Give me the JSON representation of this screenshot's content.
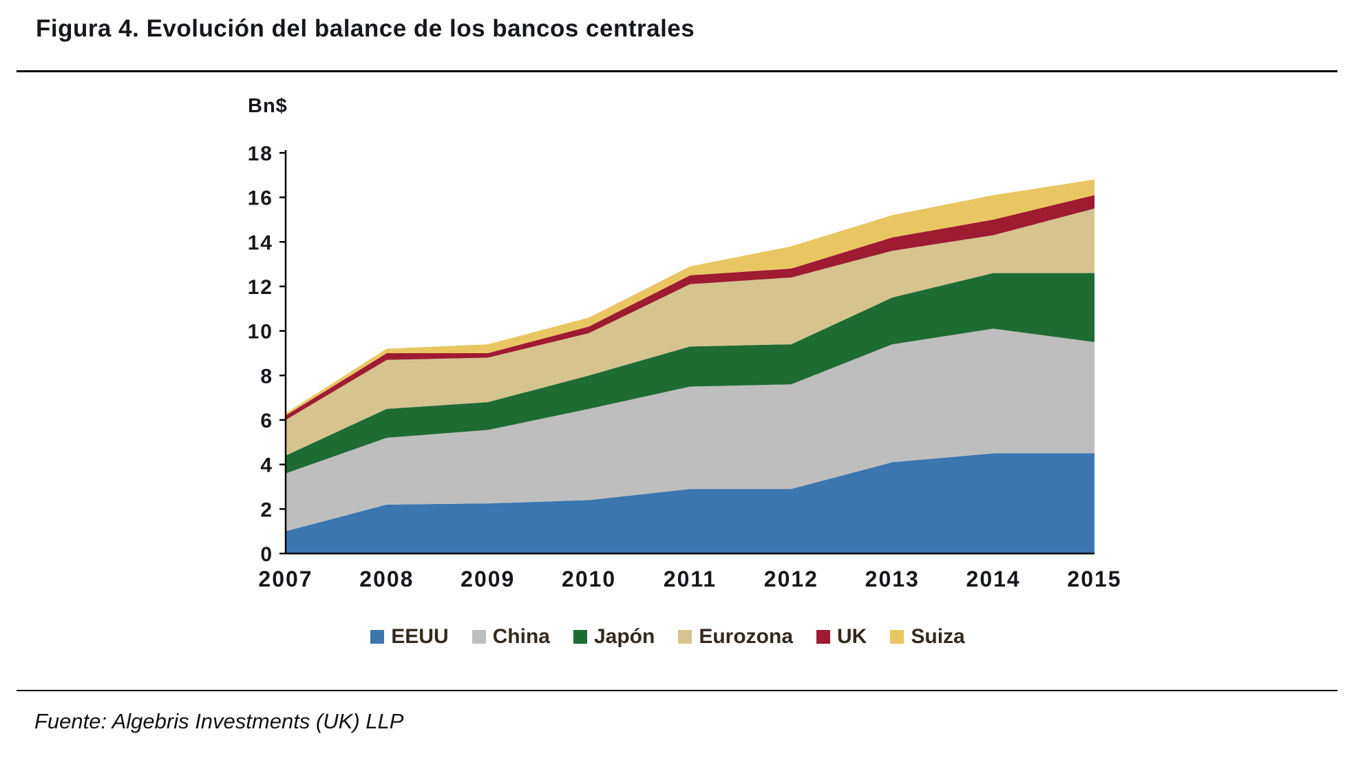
{
  "title": "Figura 4. Evolución del balance de los bancos  centrales",
  "source": "Fuente: Algebris Investments (UK) LLP",
  "chart_data": {
    "type": "area",
    "stacked": true,
    "title": "Figura 4. Evolución del balance de los bancos centrales",
    "ylabel": "Bn$",
    "xlabel": "",
    "ylim": [
      0,
      18
    ],
    "yticks": [
      0,
      2,
      4,
      6,
      8,
      10,
      12,
      14,
      16,
      18
    ],
    "grid": false,
    "legend_position": "bottom",
    "categories": [
      "2007",
      "2008",
      "2009",
      "2010",
      "2011",
      "2012",
      "2013",
      "2014",
      "2015"
    ],
    "series": [
      {
        "name": "EEUU",
        "color": "#3B76AF",
        "values": [
          1.0,
          2.2,
          2.25,
          2.4,
          2.9,
          2.9,
          4.1,
          4.5,
          4.5
        ]
      },
      {
        "name": "China",
        "color": "#BEBEBE",
        "values": [
          2.6,
          3.0,
          3.3,
          4.1,
          4.6,
          4.7,
          5.3,
          5.6,
          5.0
        ]
      },
      {
        "name": "Japón",
        "color": "#1E6B34",
        "values": [
          0.8,
          1.3,
          1.25,
          1.5,
          1.8,
          1.8,
          2.1,
          2.5,
          3.1
        ]
      },
      {
        "name": "Eurozona",
        "color": "#D5C48E",
        "values": [
          1.6,
          2.2,
          2.0,
          1.9,
          2.8,
          3.0,
          2.1,
          1.7,
          2.9
        ]
      },
      {
        "name": "UK",
        "color": "#9E1B32",
        "values": [
          0.2,
          0.3,
          0.2,
          0.3,
          0.4,
          0.4,
          0.6,
          0.7,
          0.6
        ]
      },
      {
        "name": "Suiza",
        "color": "#E9C661",
        "values": [
          0.1,
          0.2,
          0.4,
          0.4,
          0.4,
          1.0,
          1.0,
          1.1,
          0.7
        ]
      }
    ]
  }
}
